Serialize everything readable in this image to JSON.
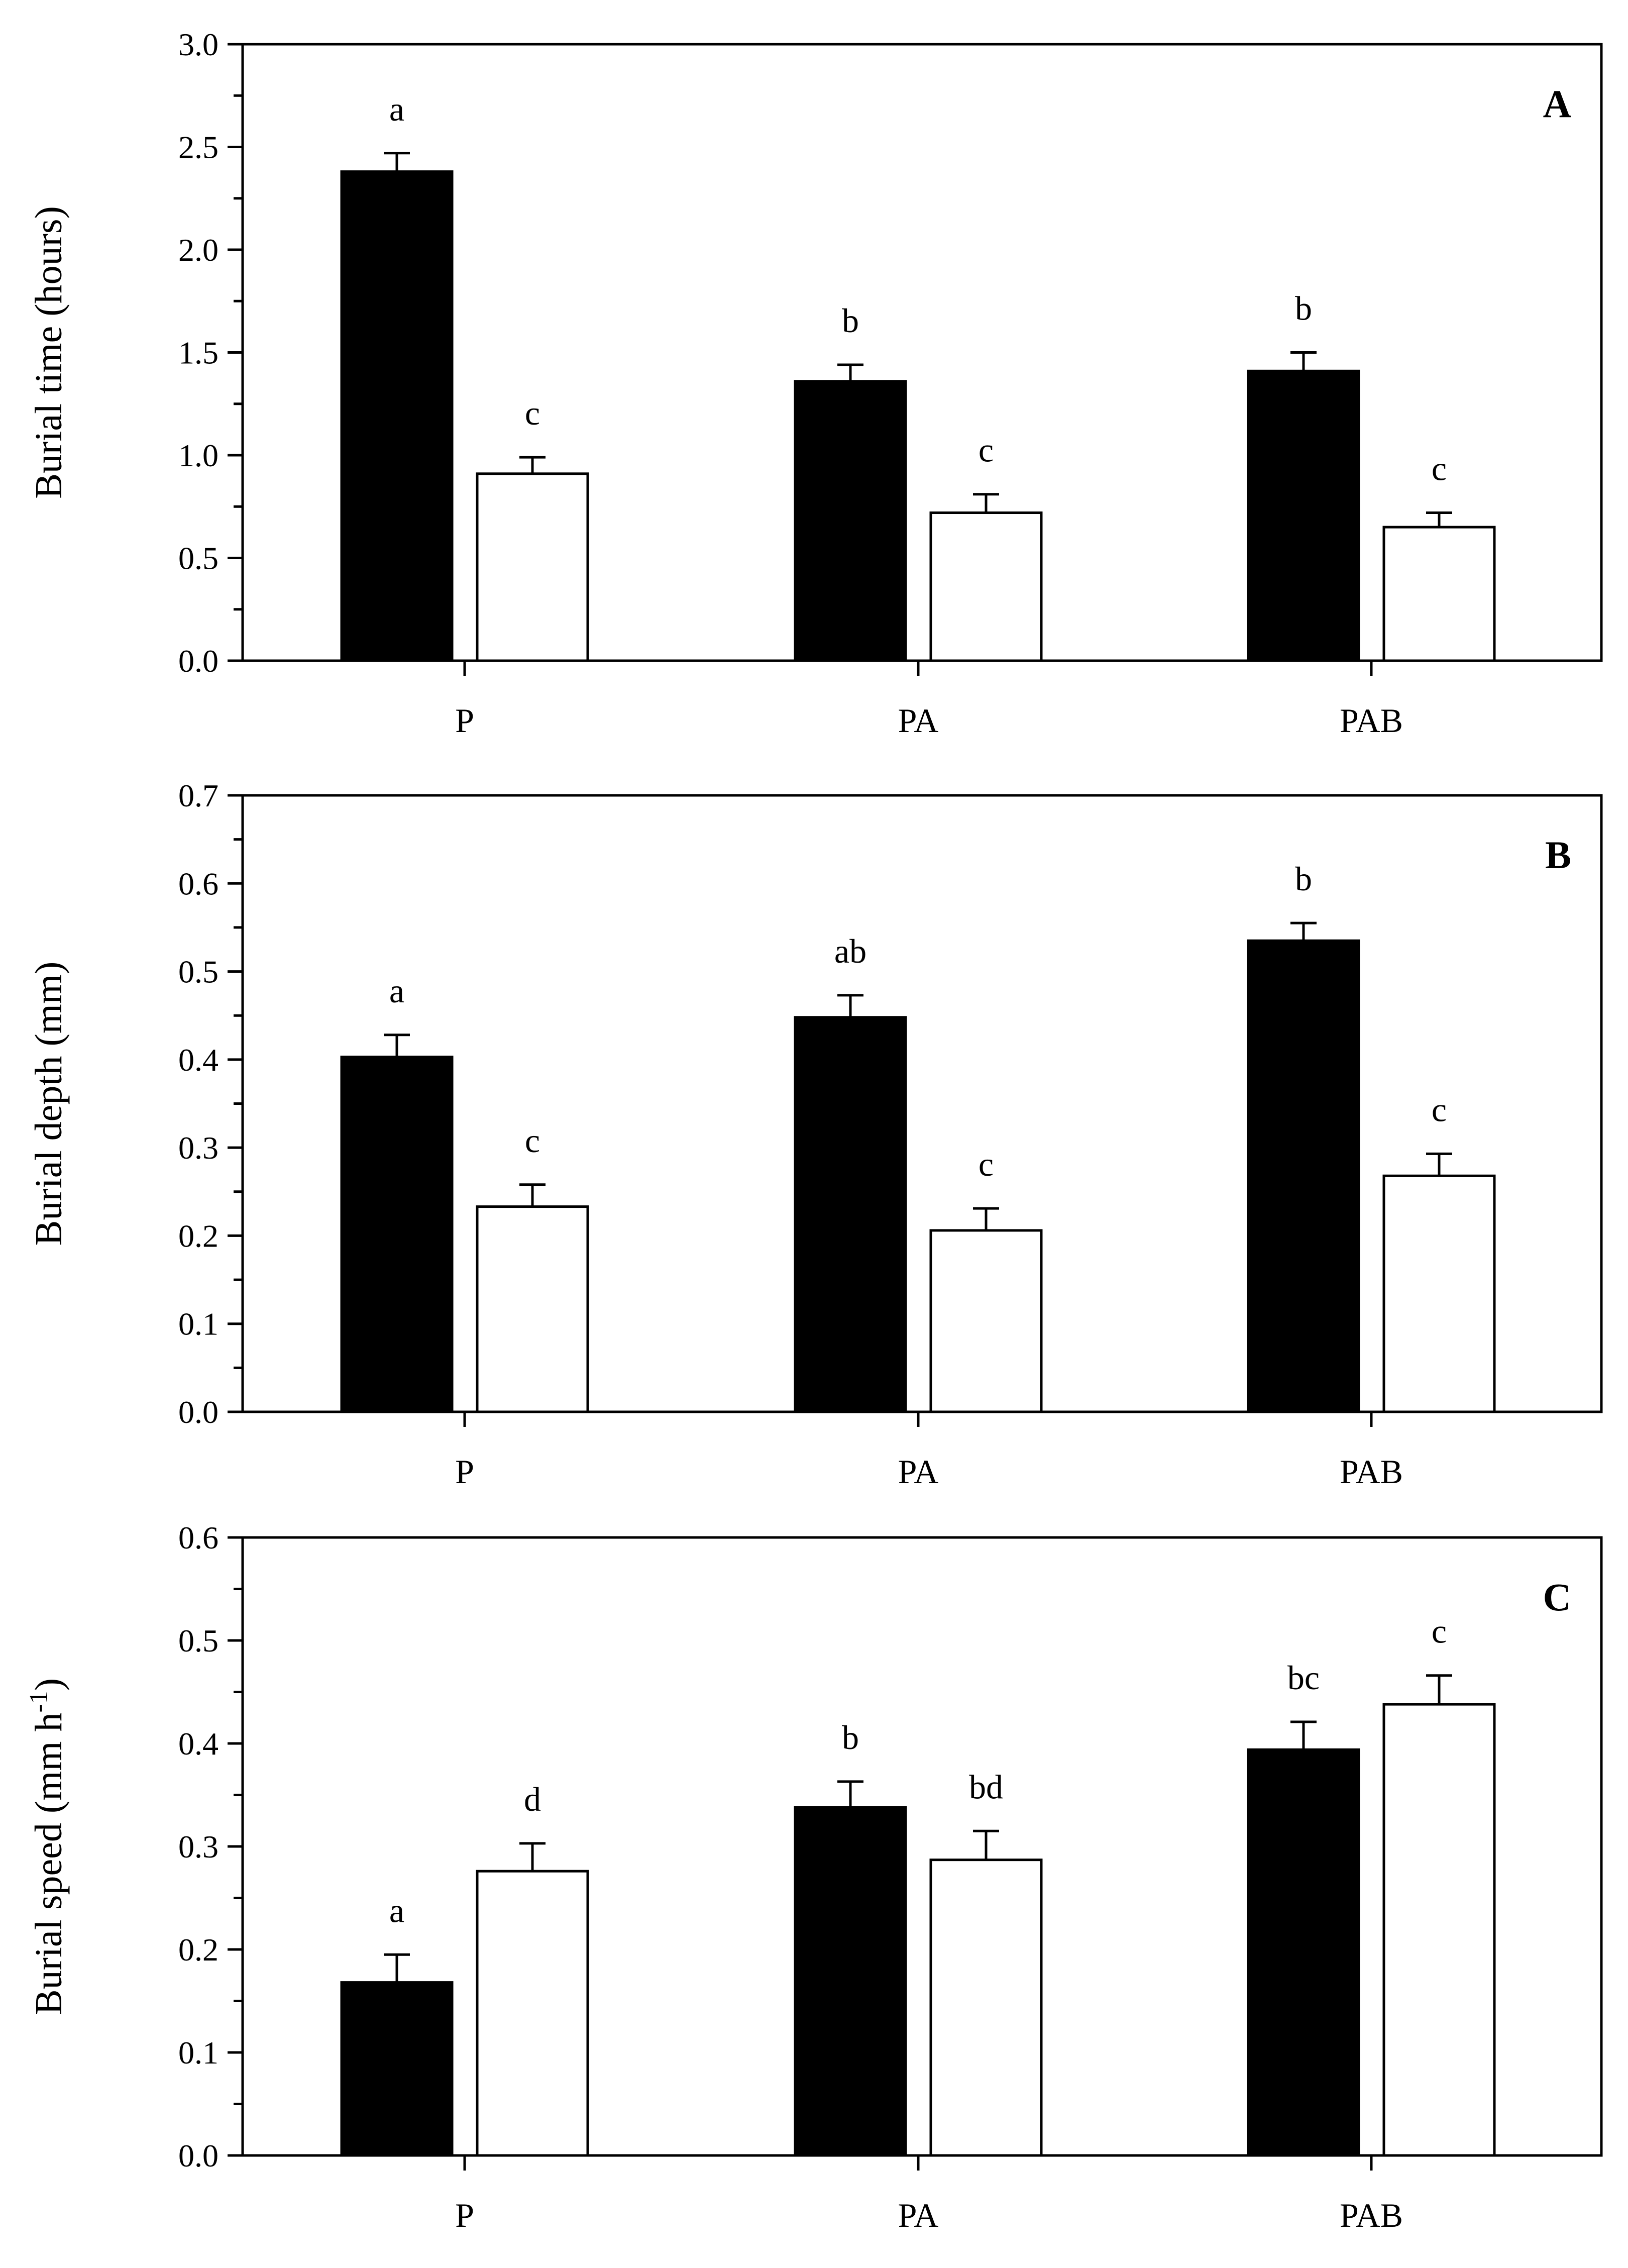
{
  "figure": {
    "panels": [
      "A",
      "B",
      "C"
    ]
  },
  "chart_data": [
    {
      "type": "bar",
      "panel_label": "A",
      "categories": [
        "P",
        "PA",
        "PAB"
      ],
      "ylabel": "Burial time (hours)",
      "xlabel": "",
      "ylim": [
        0,
        3.0
      ],
      "yticks": [
        "0.0",
        "0.5",
        "1.0",
        "1.5",
        "2.0",
        "2.5",
        "3.0"
      ],
      "tick_values": [
        0,
        0.5,
        1.0,
        1.5,
        2.0,
        2.5,
        3.0
      ],
      "grid": false,
      "series": [
        {
          "name": "filled",
          "color": "#000000",
          "values": [
            2.38,
            1.36,
            1.41
          ],
          "errors": [
            0.09,
            0.08,
            0.09
          ],
          "sig": [
            "a",
            "b",
            "b"
          ]
        },
        {
          "name": "open",
          "color": "#ffffff",
          "values": [
            0.91,
            0.72,
            0.65
          ],
          "errors": [
            0.08,
            0.09,
            0.07
          ],
          "sig": [
            "c",
            "c",
            "c"
          ]
        }
      ]
    },
    {
      "type": "bar",
      "panel_label": "B",
      "categories": [
        "P",
        "PA",
        "PAB"
      ],
      "ylabel": "Burial depth (mm)",
      "xlabel": "",
      "ylim": [
        0,
        0.7
      ],
      "yticks": [
        "0.0",
        "0.1",
        "0.2",
        "0.3",
        "0.4",
        "0.5",
        "0.6",
        "0.7"
      ],
      "tick_values": [
        0,
        0.1,
        0.2,
        0.3,
        0.4,
        0.5,
        0.6,
        0.7
      ],
      "grid": false,
      "series": [
        {
          "name": "filled",
          "color": "#000000",
          "values": [
            0.403,
            0.448,
            0.535
          ],
          "errors": [
            0.025,
            0.025,
            0.02
          ],
          "sig": [
            "a",
            "ab",
            "b"
          ]
        },
        {
          "name": "open",
          "color": "#ffffff",
          "values": [
            0.233,
            0.206,
            0.268
          ],
          "errors": [
            0.025,
            0.025,
            0.025
          ],
          "sig": [
            "c",
            "c",
            "c"
          ]
        }
      ]
    },
    {
      "type": "bar",
      "panel_label": "C",
      "categories": [
        "P",
        "PA",
        "PAB"
      ],
      "ylabel": "Burial speed (mm h",
      "ylabel_superscript": "-1",
      "ylabel_suffix": ")",
      "xlabel": "",
      "ylim": [
        0,
        0.6
      ],
      "yticks": [
        "0.0",
        "0.1",
        "0.2",
        "0.3",
        "0.4",
        "0.5",
        "0.6"
      ],
      "tick_values": [
        0,
        0.1,
        0.2,
        0.3,
        0.4,
        0.5,
        0.6
      ],
      "grid": false,
      "series": [
        {
          "name": "filled",
          "color": "#000000",
          "values": [
            0.168,
            0.338,
            0.394
          ],
          "errors": [
            0.027,
            0.025,
            0.027
          ],
          "sig": [
            "a",
            "b",
            "bc"
          ]
        },
        {
          "name": "open",
          "color": "#ffffff",
          "values": [
            0.276,
            0.287,
            0.438
          ],
          "errors": [
            0.027,
            0.028,
            0.028
          ],
          "sig": [
            "d",
            "bd",
            "c"
          ]
        }
      ]
    }
  ]
}
